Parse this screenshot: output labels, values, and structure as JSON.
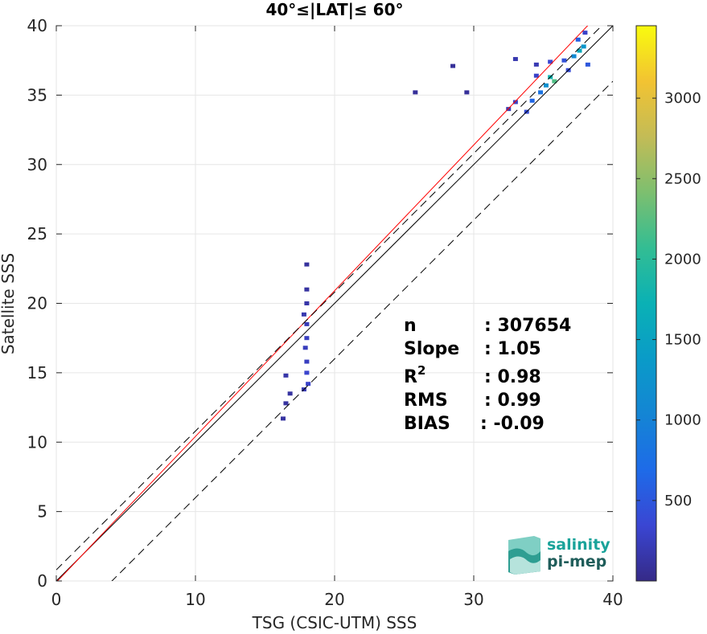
{
  "chart_data": {
    "type": "heatmap",
    "title": "40°≤|LAT|≤ 60°",
    "xlabel": "TSG (CSIC-UTM) SSS",
    "ylabel": "Satellite SSS",
    "xlim": [
      0,
      40
    ],
    "ylim": [
      0,
      40
    ],
    "xticks": [
      "0",
      "10",
      "20",
      "30",
      "40"
    ],
    "yticks": [
      "0",
      "5",
      "10",
      "15",
      "20",
      "25",
      "30",
      "35",
      "40"
    ],
    "grid": true,
    "colorbar": {
      "colormap": "parula",
      "range": [
        0,
        3450
      ],
      "ticks": [
        "500",
        "1000",
        "1500",
        "2000",
        "2500",
        "3000"
      ],
      "tick_values": [
        500,
        1000,
        1500,
        2000,
        2500,
        3000
      ]
    },
    "lines": {
      "identity": {
        "slope": 1,
        "intercept": 0,
        "color": "#000000",
        "style": "solid"
      },
      "fit": {
        "slope": 1.05,
        "intercept": -0.09,
        "color": "#ff0000",
        "style": "solid"
      },
      "upper_bound": {
        "slope": 1,
        "intercept": 0.8,
        "color": "#000000",
        "style": "dashed"
      },
      "lower_bound": {
        "slope": 1,
        "intercept": -4,
        "color": "#000000",
        "style": "dashed"
      }
    },
    "density_points": [
      {
        "x": 18.0,
        "y": 22.8,
        "count": 100
      },
      {
        "x": 18.0,
        "y": 21.0,
        "count": 120
      },
      {
        "x": 18.0,
        "y": 20.0,
        "count": 150
      },
      {
        "x": 17.8,
        "y": 19.2,
        "count": 180
      },
      {
        "x": 18.0,
        "y": 18.5,
        "count": 220
      },
      {
        "x": 18.0,
        "y": 17.5,
        "count": 260
      },
      {
        "x": 17.9,
        "y": 16.8,
        "count": 240
      },
      {
        "x": 18.0,
        "y": 15.8,
        "count": 260
      },
      {
        "x": 18.0,
        "y": 15.0,
        "count": 320
      },
      {
        "x": 18.1,
        "y": 14.2,
        "count": 300
      },
      {
        "x": 17.8,
        "y": 13.8,
        "count": 200
      },
      {
        "x": 16.5,
        "y": 14.8,
        "count": 150
      },
      {
        "x": 16.8,
        "y": 13.5,
        "count": 120
      },
      {
        "x": 16.5,
        "y": 12.8,
        "count": 110
      },
      {
        "x": 16.3,
        "y": 11.7,
        "count": 120
      },
      {
        "x": 25.8,
        "y": 35.2,
        "count": 80
      },
      {
        "x": 28.5,
        "y": 37.1,
        "count": 80
      },
      {
        "x": 29.5,
        "y": 35.2,
        "count": 80
      },
      {
        "x": 32.5,
        "y": 34.0,
        "count": 200
      },
      {
        "x": 33.0,
        "y": 34.5,
        "count": 280
      },
      {
        "x": 33.8,
        "y": 33.8,
        "count": 400
      },
      {
        "x": 34.2,
        "y": 34.6,
        "count": 650
      },
      {
        "x": 34.8,
        "y": 35.2,
        "count": 800
      },
      {
        "x": 35.2,
        "y": 35.7,
        "count": 1200
      },
      {
        "x": 35.8,
        "y": 36.0,
        "count": 2200
      },
      {
        "x": 35.5,
        "y": 36.3,
        "count": 1800
      },
      {
        "x": 34.5,
        "y": 36.4,
        "count": 300
      },
      {
        "x": 33.0,
        "y": 37.6,
        "count": 180
      },
      {
        "x": 34.5,
        "y": 37.2,
        "count": 200
      },
      {
        "x": 35.5,
        "y": 37.4,
        "count": 350
      },
      {
        "x": 36.5,
        "y": 37.5,
        "count": 450
      },
      {
        "x": 37.2,
        "y": 37.8,
        "count": 1100
      },
      {
        "x": 37.6,
        "y": 38.2,
        "count": 1600
      },
      {
        "x": 37.9,
        "y": 38.5,
        "count": 1300
      },
      {
        "x": 37.5,
        "y": 39.0,
        "count": 600
      },
      {
        "x": 38.0,
        "y": 39.5,
        "count": 300
      },
      {
        "x": 38.2,
        "y": 37.2,
        "count": 500
      },
      {
        "x": 36.8,
        "y": 36.8,
        "count": 400
      }
    ]
  },
  "stats": [
    {
      "label": "n",
      "value": ": 307654"
    },
    {
      "label": "Slope",
      "value": ": 1.05"
    },
    {
      "label": "R",
      "sup": "2",
      "value": ": 0.98"
    },
    {
      "label": "RMS",
      "value": ": 0.99"
    },
    {
      "label": "BIAS",
      "value": ": -0.09"
    }
  ],
  "logo": {
    "line1": "salinity",
    "line2": "pi-mep",
    "colors": {
      "teal": "#1aa39a",
      "dark": "#1f5d5a"
    }
  }
}
